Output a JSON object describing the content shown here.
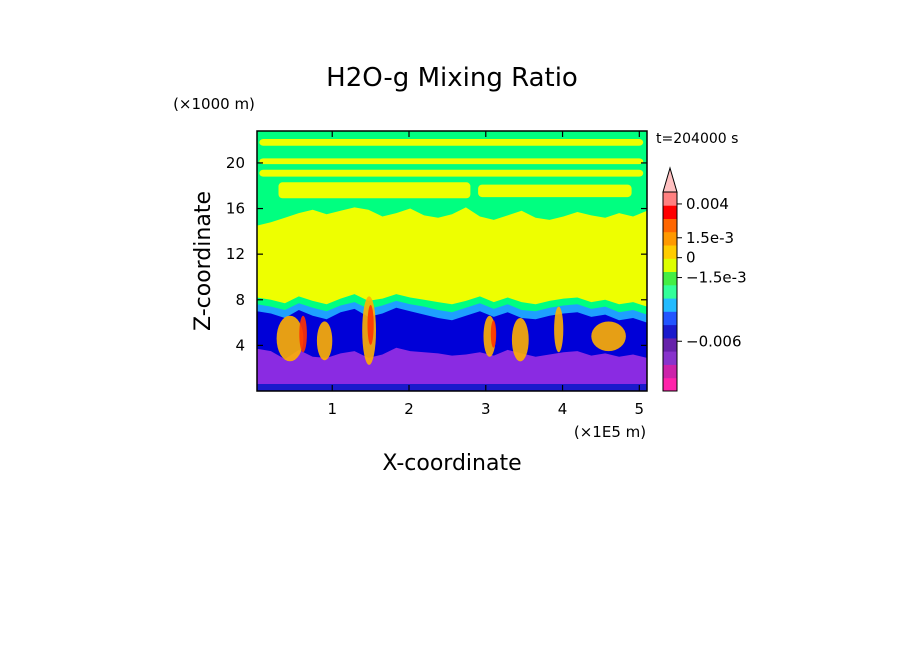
{
  "chart_data": {
    "type": "heatmap",
    "title": "H2O-g Mixing Ratio",
    "xlabel": "X-coordinate",
    "ylabel": "Z-coordinate",
    "x_unit": "(×1E5 m)",
    "y_unit": "(×1000 m)",
    "time_label": "t=204000 s",
    "xlim": [
      0.02,
      5.1
    ],
    "ylim": [
      0,
      22.8
    ],
    "x_ticks": [
      1,
      2,
      3,
      4,
      5
    ],
    "x_tick_labels": [
      "1",
      "2",
      "3",
      "4",
      "5"
    ],
    "y_ticks": [
      4,
      8,
      12,
      16,
      20
    ],
    "y_tick_labels": [
      "4",
      "8",
      "12",
      "16",
      "20"
    ],
    "colorbar": {
      "colors": [
        "#ff22aa",
        "#cc22aa",
        "#8833cc",
        "#6622aa",
        "#1a1acc",
        "#2255ff",
        "#22bbff",
        "#33ff99",
        "#44ee44",
        "#ddff00",
        "#ffcc00",
        "#ff9900",
        "#ff6600",
        "#ff0000",
        "#ff8080",
        "#ffc0c0"
      ],
      "labels": [
        {
          "value": "0.004",
          "position": 0.94
        },
        {
          "value": "1.5e-3",
          "position": 0.77
        },
        {
          "value": "0",
          "position": 0.67
        },
        {
          "value": "−1.5e-3",
          "position": 0.57
        },
        {
          "value": "−0.006",
          "position": 0.25
        }
      ]
    },
    "layers": [
      {
        "name": "purple",
        "color": "#8a2be2",
        "top_z": [
          3.7,
          3.5,
          2.8,
          3.6,
          3.0,
          2.9,
          3.3,
          3.5,
          2.9,
          3.2,
          3.8,
          3.5,
          3.4,
          3.3,
          3.1,
          3.2,
          3.4,
          3.1,
          3.6,
          3.3,
          3.0,
          3.2,
          3.4,
          3.5,
          3.1,
          3.3,
          3.0,
          3.2,
          2.9
        ]
      },
      {
        "name": "blue",
        "color": "#0000d8",
        "top_z": [
          7.0,
          6.8,
          6.4,
          7.1,
          6.6,
          6.3,
          6.9,
          7.2,
          6.5,
          6.8,
          7.3,
          7.0,
          6.7,
          6.4,
          6.2,
          6.6,
          7.0,
          6.5,
          6.9,
          6.4,
          6.3,
          6.6,
          6.8,
          6.9,
          6.5,
          6.7,
          6.2,
          6.4,
          6.0
        ]
      },
      {
        "name": "cyan",
        "color": "#1ea0ff",
        "top_z": [
          7.6,
          7.4,
          7.1,
          7.7,
          7.3,
          7.0,
          7.5,
          7.8,
          7.2,
          7.5,
          7.9,
          7.6,
          7.4,
          7.1,
          6.9,
          7.3,
          7.7,
          7.2,
          7.6,
          7.1,
          7.0,
          7.3,
          7.5,
          7.6,
          7.2,
          7.4,
          6.9,
          7.1,
          6.7
        ]
      },
      {
        "name": "green",
        "color": "#00ff80",
        "top_z": [
          8.2,
          8.0,
          7.7,
          8.3,
          7.9,
          7.6,
          8.1,
          8.5,
          7.9,
          8.1,
          8.5,
          8.2,
          8.0,
          7.8,
          7.6,
          7.9,
          8.3,
          7.8,
          8.2,
          7.8,
          7.6,
          7.9,
          8.1,
          8.2,
          7.8,
          8.0,
          7.6,
          7.8,
          7.4
        ]
      },
      {
        "name": "yellow",
        "color": "#eeff00",
        "top_z": [
          14.5,
          14.8,
          15.2,
          15.6,
          15.9,
          15.5,
          15.8,
          16.1,
          15.9,
          15.3,
          15.6,
          16.0,
          15.4,
          15.2,
          15.5,
          16.1,
          15.3,
          15.0,
          15.4,
          15.8,
          15.2,
          15.0,
          15.3,
          15.7,
          15.4,
          15.2,
          15.6,
          15.3,
          15.8
        ]
      }
    ],
    "bands": [
      {
        "color": "#eeff00",
        "x0": 0.05,
        "x1": 5.05,
        "z0": 19.9,
        "z1": 20.4
      },
      {
        "color": "#eeff00",
        "x0": 0.05,
        "x1": 5.05,
        "z0": 18.8,
        "z1": 19.4
      },
      {
        "color": "#eeff00",
        "x0": 0.05,
        "x1": 5.05,
        "z0": 21.5,
        "z1": 22.1
      },
      {
        "color": "#eeff00",
        "x0": 0.3,
        "x1": 2.8,
        "z0": 16.9,
        "z1": 18.3
      },
      {
        "color": "#eeff00",
        "x0": 2.9,
        "x1": 4.9,
        "z0": 17.0,
        "z1": 18.1
      }
    ],
    "plumes": [
      {
        "color": "#ffb000",
        "x": 0.45,
        "z": 4.6,
        "width": 0.35,
        "height": 4.0
      },
      {
        "color": "#ffb000",
        "x": 0.9,
        "z": 4.4,
        "width": 0.2,
        "height": 3.4
      },
      {
        "color": "#ffb000",
        "x": 1.48,
        "z": 5.3,
        "width": 0.18,
        "height": 6.0
      },
      {
        "color": "#ffb000",
        "x": 3.05,
        "z": 4.8,
        "width": 0.16,
        "height": 3.6
      },
      {
        "color": "#ffb000",
        "x": 3.45,
        "z": 4.5,
        "width": 0.22,
        "height": 3.8
      },
      {
        "color": "#ffb000",
        "x": 3.95,
        "z": 5.4,
        "width": 0.12,
        "height": 4.0
      },
      {
        "color": "#ffb000",
        "x": 4.6,
        "z": 4.8,
        "width": 0.45,
        "height": 2.6
      },
      {
        "color": "#ff3300",
        "x": 0.62,
        "z": 5.0,
        "width": 0.1,
        "height": 3.2
      },
      {
        "color": "#ff3300",
        "x": 1.5,
        "z": 5.8,
        "width": 0.08,
        "height": 3.5
      },
      {
        "color": "#ff3300",
        "x": 3.1,
        "z": 5.0,
        "width": 0.07,
        "height": 2.4
      }
    ]
  }
}
